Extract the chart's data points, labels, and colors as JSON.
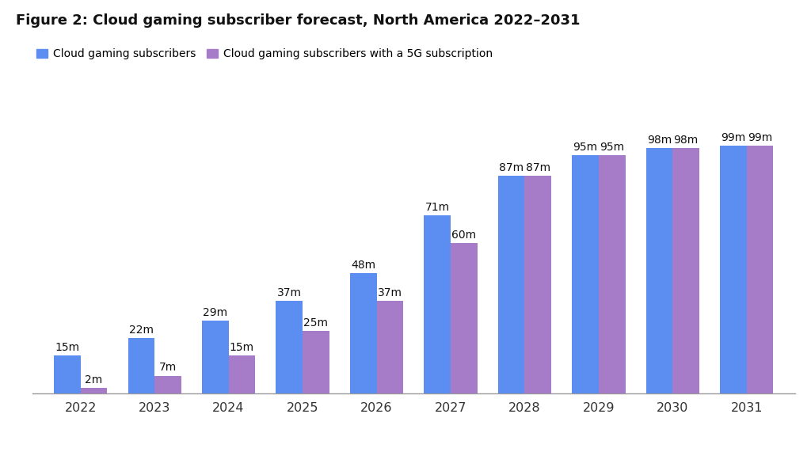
{
  "title": "Figure 2: Cloud gaming subscriber forecast, North America 2022–2031",
  "years": [
    "2022",
    "2023",
    "2024",
    "2025",
    "2026",
    "2027",
    "2028",
    "2029",
    "2030",
    "2031"
  ],
  "cloud_subscribers": [
    15,
    22,
    29,
    37,
    48,
    71,
    87,
    95,
    98,
    99
  ],
  "cloud_5g_subscribers": [
    2,
    7,
    15,
    25,
    37,
    60,
    87,
    95,
    98,
    99
  ],
  "color_blue": "#5B8EF0",
  "color_purple": "#A67BC8",
  "legend_blue": "Cloud gaming subscribers",
  "legend_purple": "Cloud gaming subscribers with a 5G subscription",
  "bar_width": 0.36,
  "ylim": [
    0,
    112
  ],
  "background_color": "#ffffff",
  "axis_line_color": "#999999",
  "label_fontsize": 10,
  "title_fontsize": 13,
  "tick_fontsize": 11.5
}
